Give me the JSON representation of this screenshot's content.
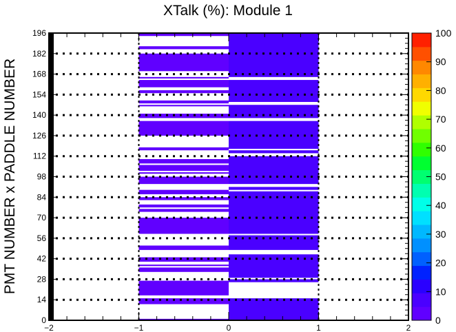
{
  "chart_data": {
    "type": "heatmap",
    "title": "XTalk (%): Module 1",
    "xlabel": "",
    "ylabel": "PMT NUMBER x PADDLE NUMBER",
    "xlim": [
      -2,
      2
    ],
    "ylim": [
      0,
      196
    ],
    "x_ticks": [
      "−2",
      "−1",
      "0",
      "1",
      "2"
    ],
    "y_ticks": [
      "0",
      "14",
      "28",
      "42",
      "56",
      "70",
      "84",
      "98",
      "112",
      "126",
      "140",
      "154",
      "168",
      "182",
      "196"
    ],
    "colorbar": {
      "min": 0,
      "max": 100,
      "ticks": [
        "0",
        "10",
        "20",
        "30",
        "40",
        "50",
        "60",
        "70",
        "80",
        "90",
        "100"
      ],
      "palette": [
        "#6000ff",
        "#4a00ff",
        "#2a00ff",
        "#0022ff",
        "#0060ff",
        "#0090ff",
        "#00b8ff",
        "#00e0ff",
        "#00ffe8",
        "#00ffb0",
        "#00ff70",
        "#00ff30",
        "#30ff00",
        "#70ff00",
        "#b0ff00",
        "#f0ff00",
        "#ffd800",
        "#ffb000",
        "#ff8800",
        "#ff5000",
        "#ff2000"
      ]
    },
    "dashed_lines_y": [
      14,
      28,
      42,
      56,
      70,
      84,
      98,
      112,
      126,
      140,
      154,
      168,
      182
    ],
    "columns": [
      {
        "x": [
          -1,
          0
        ],
        "filled_y_ranges": [
          [
            0,
            1
          ],
          [
            11,
            15
          ],
          [
            17,
            27
          ],
          [
            33,
            36
          ],
          [
            37,
            38
          ],
          [
            40,
            43
          ],
          [
            48,
            51
          ],
          [
            59,
            70
          ],
          [
            74,
            76
          ],
          [
            77,
            79
          ],
          [
            82,
            84
          ],
          [
            86,
            89
          ],
          [
            93,
            98
          ],
          [
            100,
            101
          ],
          [
            102,
            106
          ],
          [
            107,
            110
          ],
          [
            116,
            118
          ],
          [
            126,
            136
          ],
          [
            138,
            141
          ],
          [
            146,
            147
          ],
          [
            148,
            150
          ],
          [
            155,
            157
          ],
          [
            159,
            164
          ],
          [
            165,
            166
          ],
          [
            170,
            182
          ],
          [
            185,
            187
          ],
          [
            194,
            196
          ]
        ],
        "approx_value": 3
      },
      {
        "x": [
          0,
          1
        ],
        "filled_y_ranges": [
          [
            0,
            15
          ],
          [
            26,
            28
          ],
          [
            29,
            45
          ],
          [
            48,
            58
          ],
          [
            59,
            88
          ],
          [
            89,
            91
          ],
          [
            93,
            112
          ],
          [
            114,
            116
          ],
          [
            117,
            136
          ],
          [
            138,
            147
          ],
          [
            149,
            164
          ],
          [
            166,
            196
          ]
        ],
        "approx_value": 5
      }
    ]
  }
}
